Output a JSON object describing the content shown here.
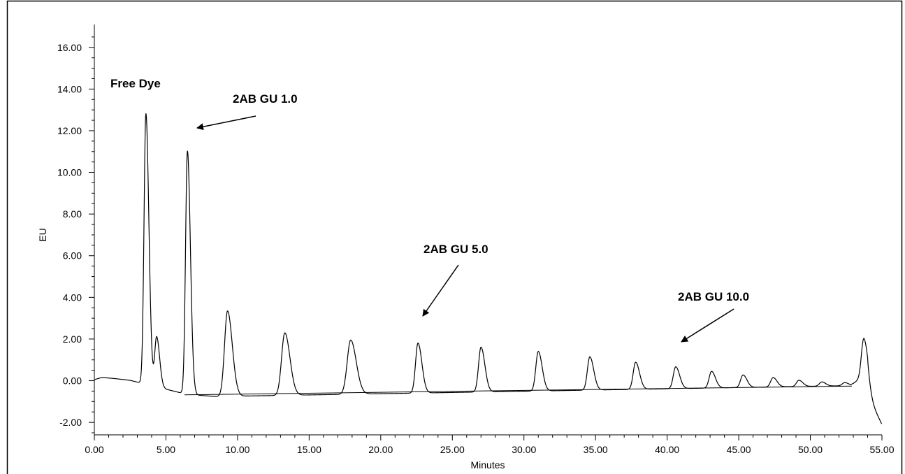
{
  "chart_data": {
    "type": "line",
    "xlabel": "Minutes",
    "ylabel": "EU",
    "xlim": [
      0,
      55
    ],
    "ylim": [
      -2.6,
      17.1
    ],
    "x_ticks": [
      "0.00",
      "5.00",
      "10.00",
      "15.00",
      "20.00",
      "25.00",
      "30.00",
      "35.00",
      "40.00",
      "45.00",
      "50.00",
      "55.00"
    ],
    "y_ticks": [
      "-2.00",
      "0.00",
      "2.00",
      "4.00",
      "6.00",
      "8.00",
      "10.00",
      "12.00",
      "14.00",
      "16.00"
    ],
    "grid": false,
    "series_color": "#000000",
    "peaks": [
      {
        "x": 3.6,
        "height": 13.0
      },
      {
        "x": 4.35,
        "height": 2.4
      },
      {
        "x": 6.5,
        "height": 11.7
      },
      {
        "x": 9.3,
        "height": 4.1
      },
      {
        "x": 13.3,
        "height": 3.0
      },
      {
        "x": 17.9,
        "height": 2.6
      },
      {
        "x": 22.6,
        "height": 2.4
      },
      {
        "x": 27.0,
        "height": 2.15
      },
      {
        "x": 31.0,
        "height": 1.9
      },
      {
        "x": 34.6,
        "height": 1.6
      },
      {
        "x": 37.8,
        "height": 1.3
      },
      {
        "x": 40.6,
        "height": 1.05
      },
      {
        "x": 43.1,
        "height": 0.8
      },
      {
        "x": 45.3,
        "height": 0.6
      },
      {
        "x": 47.4,
        "height": 0.45
      },
      {
        "x": 49.2,
        "height": 0.3
      },
      {
        "x": 50.8,
        "height": 0.2
      },
      {
        "x": 52.4,
        "height": 0.15
      },
      {
        "x": 53.75,
        "height": 2.0
      }
    ],
    "annotations": [
      {
        "text": "Free Dye",
        "x": 3.6,
        "y": 13.0
      },
      {
        "text": "2AB GU 1.0",
        "x": 6.5,
        "y": 11.7
      },
      {
        "text": "2AB GU 5.0",
        "x": 22.6,
        "y": 2.4
      },
      {
        "text": "2AB GU 10.0",
        "x": 40.6,
        "y": 1.05
      }
    ]
  }
}
